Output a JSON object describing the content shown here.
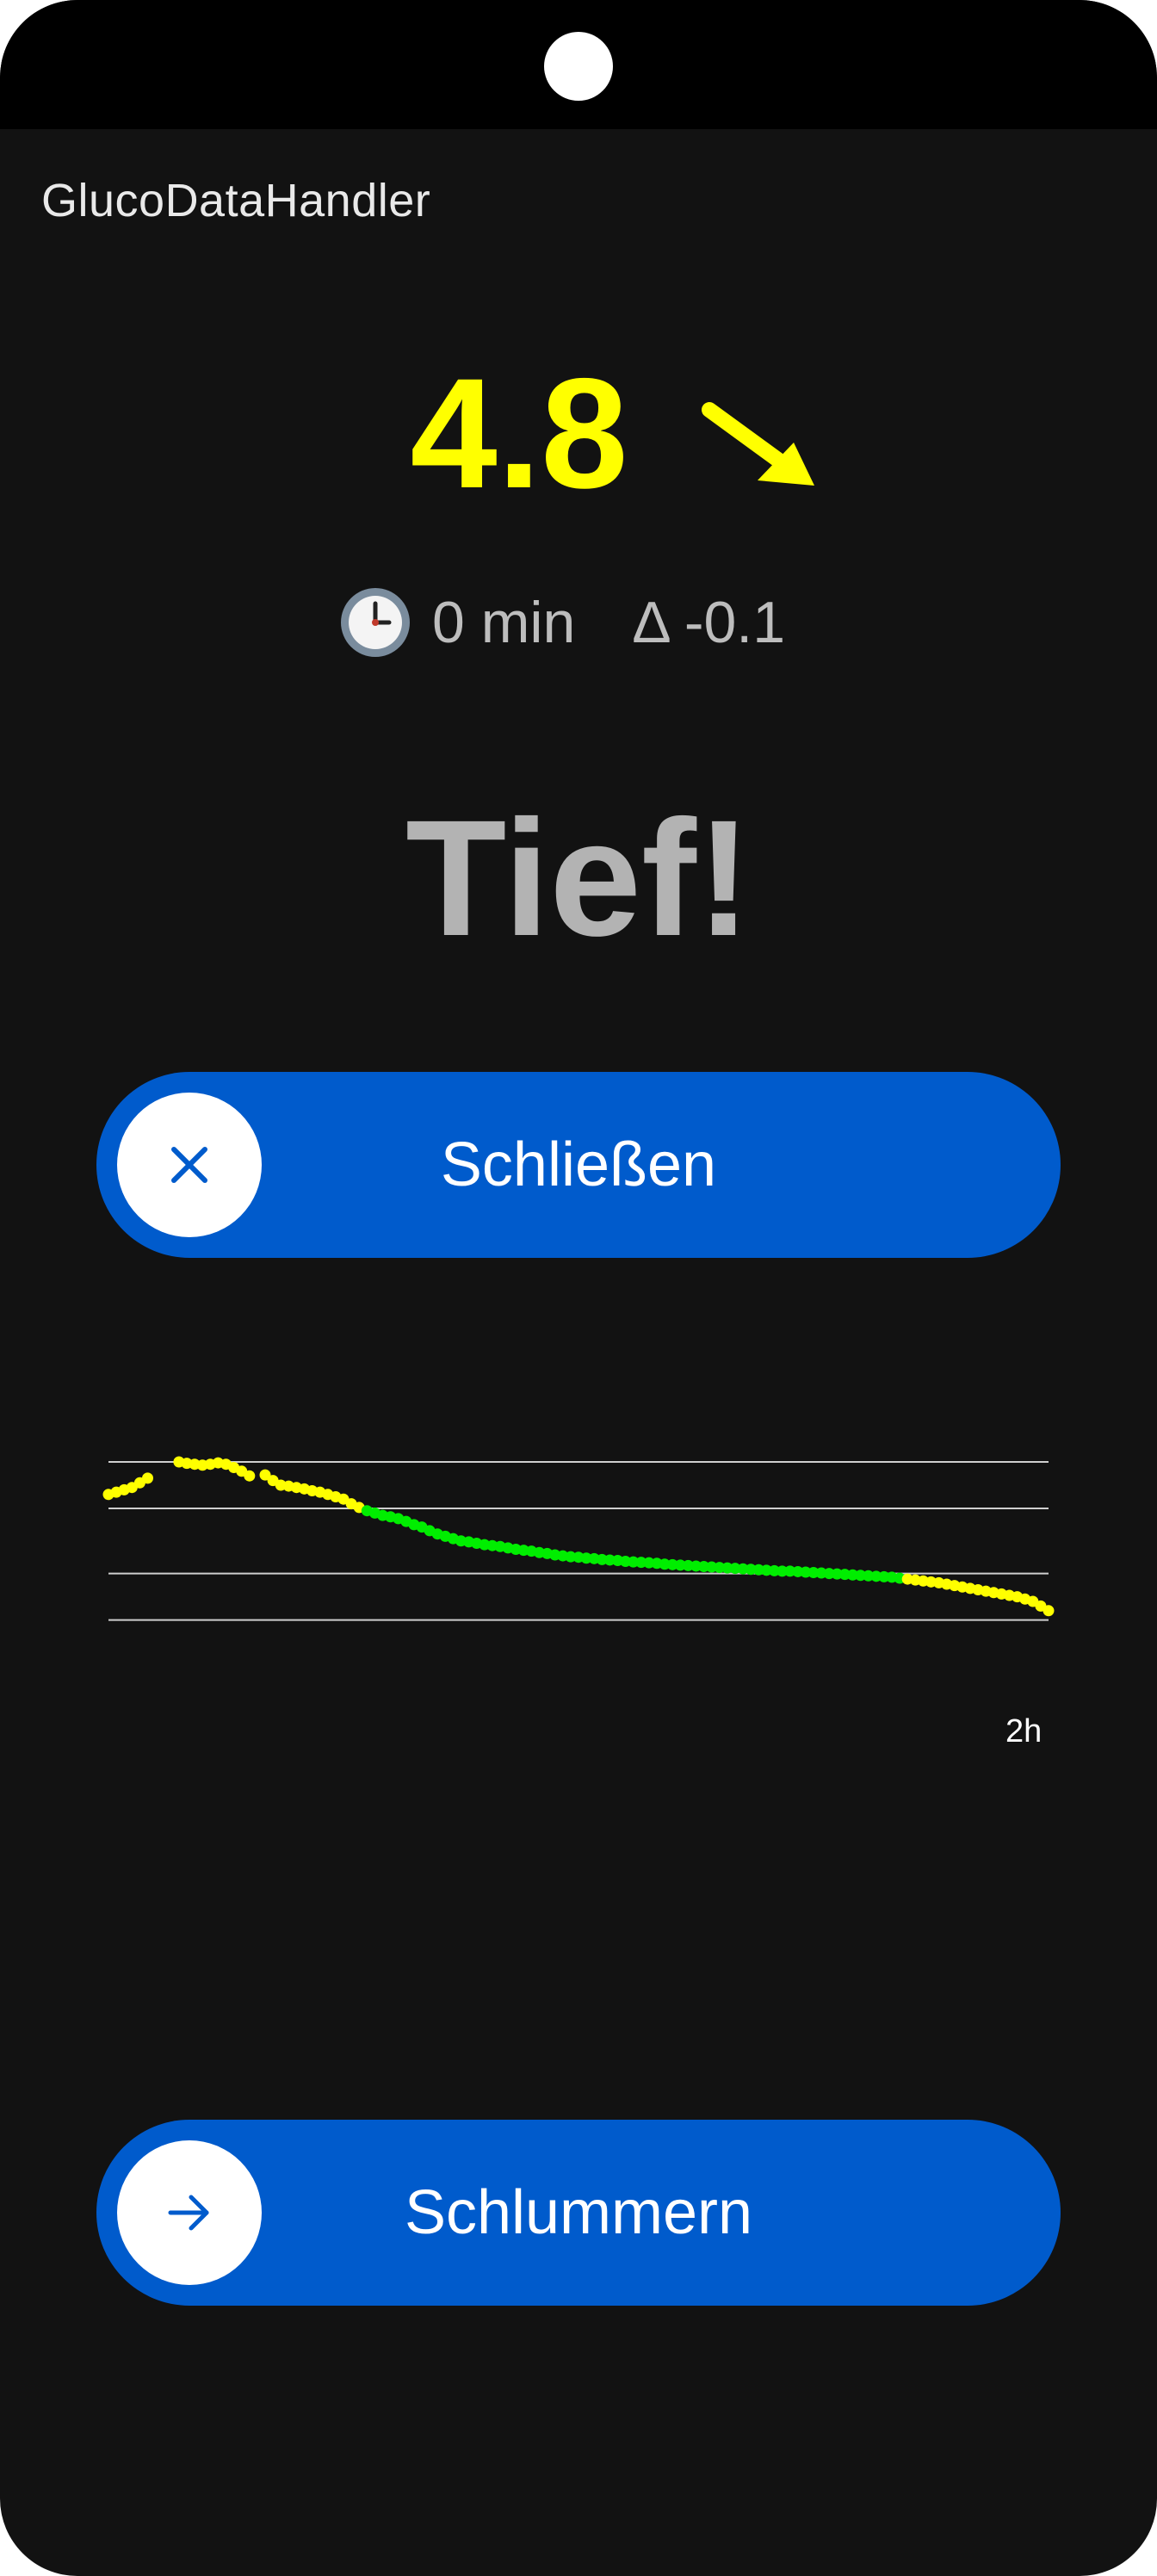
{
  "app": {
    "title": "GlucoDataHandler"
  },
  "glucose": {
    "value": "4.8",
    "color": "#ffff00",
    "trend": "falling-arrow-icon",
    "time_ago": "0 min",
    "delta": "Δ -0.1"
  },
  "alarm": {
    "text": "Tief!"
  },
  "buttons": {
    "dismiss": {
      "label": "Schließen",
      "icon": "close-icon"
    },
    "snooze": {
      "label": "Schlummern",
      "icon": "arrow-right-icon"
    }
  },
  "chart_data": {
    "type": "scatter",
    "title": "",
    "x_label_right": "2h",
    "xlim": [
      0,
      120
    ],
    "ylim": [
      3.0,
      8.0
    ],
    "grid_lines_y": [
      4.6,
      5.6,
      7.0,
      8.0
    ],
    "low_threshold": 5.5,
    "high_threshold": 7.0,
    "color_in_range": "#00ee00",
    "color_out_of_range": "#ffff00",
    "x": [
      0,
      1,
      2,
      3,
      4,
      5,
      6,
      7,
      8,
      9,
      10,
      11,
      12,
      13,
      14,
      15,
      16,
      17,
      18,
      19,
      20,
      21,
      22,
      23,
      24,
      25,
      26,
      27,
      28,
      29,
      30,
      31,
      32,
      33,
      34,
      35,
      36,
      37,
      38,
      39,
      40,
      41,
      42,
      43,
      44,
      45,
      46,
      47,
      48,
      49,
      50,
      51,
      52,
      53,
      54,
      55,
      56,
      57,
      58,
      59,
      60,
      61,
      62,
      63,
      64,
      65,
      66,
      67,
      68,
      69,
      70,
      71,
      72,
      73,
      74,
      75,
      76,
      77,
      78,
      79,
      80,
      81,
      82,
      83,
      84,
      85,
      86,
      87,
      88,
      89,
      90,
      91,
      92,
      93,
      94,
      95,
      96,
      97,
      98,
      99,
      100,
      101,
      102,
      103,
      104,
      105,
      106,
      107,
      108,
      109,
      110,
      111,
      112,
      113,
      114,
      115,
      116,
      117,
      118,
      119,
      120
    ],
    "y": [
      7.3,
      7.35,
      7.4,
      7.45,
      7.55,
      7.65,
      null,
      null,
      null,
      8.0,
      7.97,
      7.95,
      7.93,
      7.95,
      7.98,
      7.95,
      7.88,
      7.8,
      7.7,
      null,
      7.72,
      7.6,
      7.5,
      7.48,
      7.45,
      7.42,
      7.38,
      7.35,
      7.3,
      7.25,
      7.2,
      7.1,
      7.02,
      6.95,
      6.9,
      6.85,
      6.82,
      6.78,
      6.72,
      6.65,
      6.6,
      6.52,
      6.45,
      6.4,
      6.35,
      6.3,
      6.28,
      6.25,
      6.22,
      6.2,
      6.18,
      6.15,
      6.12,
      6.1,
      6.08,
      6.05,
      6.03,
      6.0,
      5.98,
      5.96,
      5.95,
      5.93,
      5.92,
      5.9,
      5.89,
      5.88,
      5.86,
      5.85,
      5.84,
      5.83,
      5.82,
      5.8,
      5.79,
      5.78,
      5.77,
      5.76,
      5.75,
      5.74,
      5.73,
      5.72,
      5.71,
      5.7,
      5.69,
      5.68,
      5.67,
      5.66,
      5.65,
      5.65,
      5.64,
      5.63,
      5.62,
      5.61,
      5.6,
      5.59,
      5.58,
      5.57,
      5.56,
      5.55,
      5.54,
      5.53,
      5.52,
      5.5,
      5.48,
      5.46,
      5.44,
      5.42,
      5.4,
      5.37,
      5.34,
      5.31,
      5.28,
      5.25,
      5.22,
      5.19,
      5.16,
      5.13,
      5.1,
      5.05,
      5.0,
      4.9,
      4.8
    ]
  }
}
